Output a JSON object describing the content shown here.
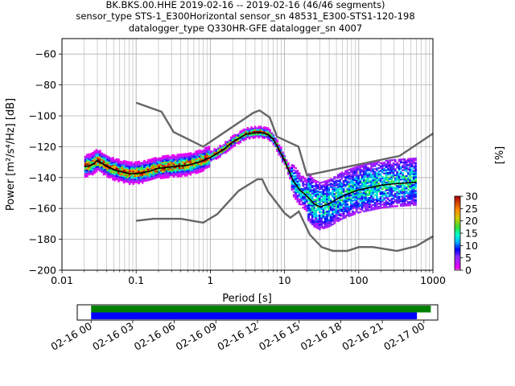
{
  "chart_data": [
    {
      "type": "heatmap",
      "title_lines": [
        "BK.BKS.00.HHE   2019-02-16 -- 2019-02-16  (46/46 segments)",
        "sensor_type STS-1_E300Horizontal sensor_sn 48531_E300-STS1-120-198",
        "datalogger_type Q330HR-GFE datalogger_sn 4007"
      ],
      "xlabel": "Period [s]",
      "ylabel": "Power [m²/s⁴/Hz] [dB]",
      "x_scale": "log",
      "xlim": [
        0.01,
        1000
      ],
      "ylim": [
        -200,
        -50
      ],
      "grid": true,
      "x_ticks": [
        {
          "value": 0.01,
          "label": "0.01"
        },
        {
          "value": 0.1,
          "label": "0.1"
        },
        {
          "value": 1,
          "label": "1"
        },
        {
          "value": 10,
          "label": "10"
        },
        {
          "value": 100,
          "label": "100"
        },
        {
          "value": 1000,
          "label": "1000"
        }
      ],
      "y_ticks": [
        {
          "value": -60,
          "label": "−60"
        },
        {
          "value": -80,
          "label": "−80"
        },
        {
          "value": -100,
          "label": "−100"
        },
        {
          "value": -120,
          "label": "−120"
        },
        {
          "value": -140,
          "label": "−140"
        },
        {
          "value": -160,
          "label": "−160"
        },
        {
          "value": -180,
          "label": "−180"
        },
        {
          "value": -200,
          "label": "−200"
        }
      ],
      "noise_model_high": [
        [
          0.1,
          -91.5
        ],
        [
          0.22,
          -97.4
        ],
        [
          0.32,
          -110.5
        ],
        [
          0.8,
          -120
        ],
        [
          3.8,
          -98
        ],
        [
          4.6,
          -96.5
        ],
        [
          6.3,
          -101
        ],
        [
          7.9,
          -113.5
        ],
        [
          15.4,
          -120
        ],
        [
          20,
          -138.5
        ],
        [
          354.8,
          -126
        ],
        [
          1000,
          -111.5
        ]
      ],
      "noise_model_low": [
        [
          0.1,
          -168
        ],
        [
          0.17,
          -166.7
        ],
        [
          0.4,
          -166.7
        ],
        [
          0.8,
          -169.2
        ],
        [
          1.24,
          -163.7
        ],
        [
          2.4,
          -148.6
        ],
        [
          4.3,
          -141.1
        ],
        [
          5,
          -141.1
        ],
        [
          6,
          -149
        ],
        [
          10,
          -163
        ],
        [
          12,
          -166
        ],
        [
          15.6,
          -162
        ],
        [
          21.9,
          -177
        ],
        [
          31.6,
          -185
        ],
        [
          45,
          -187.5
        ],
        [
          70,
          -187.5
        ],
        [
          101,
          -185
        ],
        [
          154,
          -185
        ],
        [
          328,
          -187.5
        ],
        [
          600,
          -184.4
        ],
        [
          1000,
          -178
        ]
      ],
      "mean_curve": [
        [
          0.02,
          -133
        ],
        [
          0.025,
          -132
        ],
        [
          0.03,
          -129
        ],
        [
          0.035,
          -131
        ],
        [
          0.05,
          -135
        ],
        [
          0.08,
          -137.5
        ],
        [
          0.1,
          -137.5
        ],
        [
          0.15,
          -136
        ],
        [
          0.2,
          -134
        ],
        [
          0.3,
          -133
        ],
        [
          0.5,
          -132
        ],
        [
          0.7,
          -130
        ],
        [
          1,
          -127
        ],
        [
          1.5,
          -122
        ],
        [
          2,
          -117
        ],
        [
          3,
          -112
        ],
        [
          4,
          -111
        ],
        [
          5,
          -111
        ],
        [
          6,
          -112
        ],
        [
          7,
          -115
        ],
        [
          8,
          -120
        ],
        [
          10,
          -129
        ],
        [
          13,
          -142
        ],
        [
          16,
          -148
        ],
        [
          20,
          -152
        ],
        [
          25,
          -157
        ],
        [
          30,
          -159
        ],
        [
          40,
          -157
        ],
        [
          60,
          -152
        ],
        [
          100,
          -148
        ],
        [
          200,
          -145
        ],
        [
          300,
          -144
        ],
        [
          600,
          -143
        ]
      ],
      "colorbar": {
        "label": "[%]",
        "min": 0,
        "max": 30,
        "ticks": [
          {
            "value": 0,
            "label": "0"
          },
          {
            "value": 5,
            "label": "5"
          },
          {
            "value": 10,
            "label": "10"
          },
          {
            "value": 15,
            "label": "15"
          },
          {
            "value": 20,
            "label": "20"
          },
          {
            "value": 25,
            "label": "25"
          },
          {
            "value": 30,
            "label": "30"
          }
        ]
      }
    },
    {
      "type": "bar",
      "description": "data coverage timeline",
      "time_range_hours": [
        -1,
        25
      ],
      "x_ticks": [
        {
          "value": 0,
          "label": "02-16 00"
        },
        {
          "value": 3,
          "label": "02-16 03"
        },
        {
          "value": 6,
          "label": "02-16 06"
        },
        {
          "value": 9,
          "label": "02-16 09"
        },
        {
          "value": 12,
          "label": "02-16 12"
        },
        {
          "value": 15,
          "label": "02-16 15"
        },
        {
          "value": 18,
          "label": "02-16 18"
        },
        {
          "value": 21,
          "label": "02-16 21"
        },
        {
          "value": 24,
          "label": "02-17 00"
        }
      ],
      "bars": [
        {
          "color": "#008000",
          "start_hours": 0,
          "end_hours": 24.5
        },
        {
          "color": "#0000ff",
          "start_hours": 0,
          "end_hours": 23.5
        }
      ]
    }
  ]
}
